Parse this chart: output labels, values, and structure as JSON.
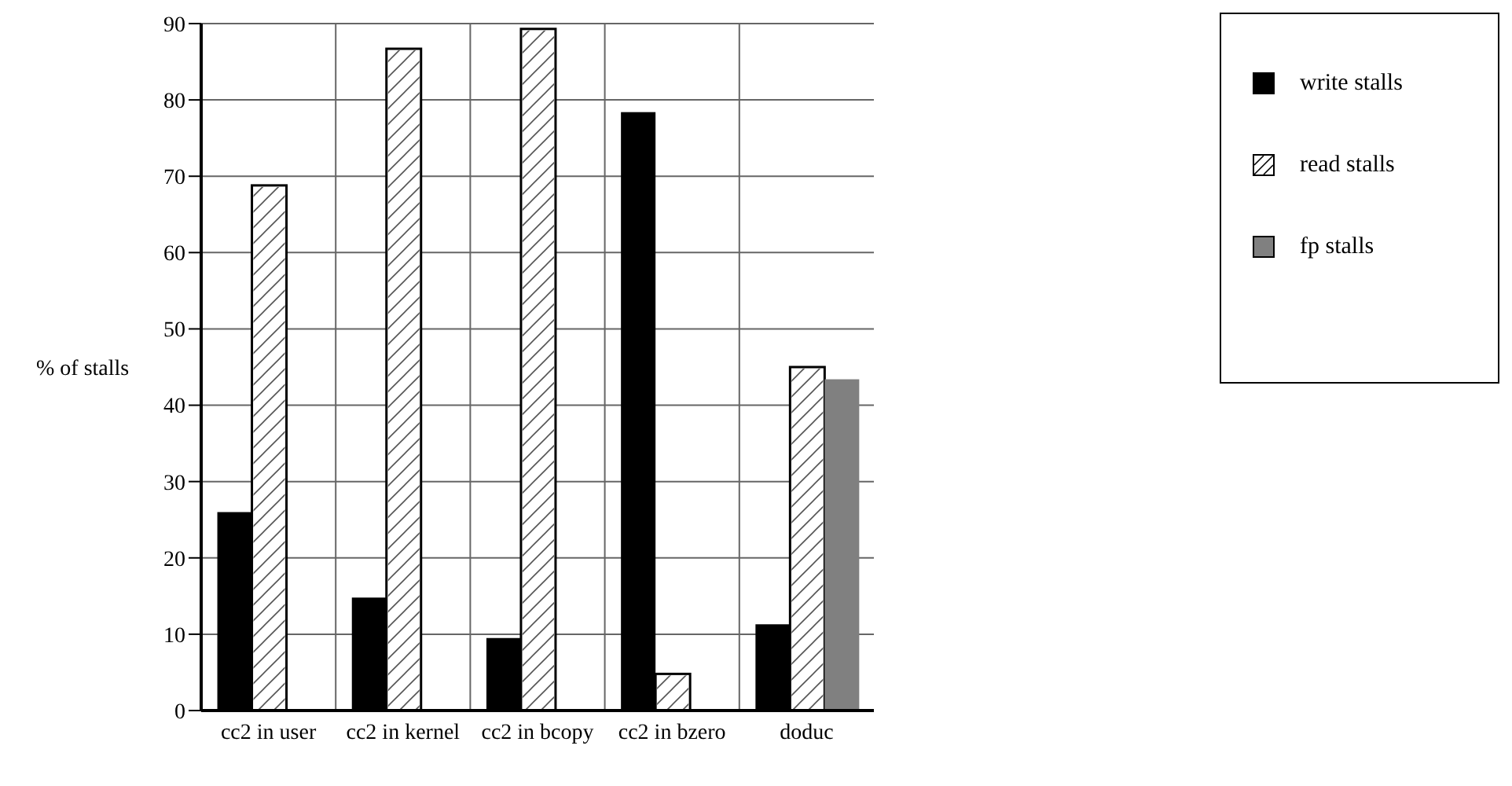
{
  "chart_data": {
    "type": "bar",
    "ylabel": "% of stalls",
    "categories": [
      "cc2 in user",
      "cc2 in kernel",
      "cc2 in bcopy",
      "cc2 in bzero",
      "doduc"
    ],
    "series": [
      {
        "name": "write stalls",
        "color": "#000000",
        "values": [
          26,
          14.8,
          9.5,
          78.4,
          11.3
        ]
      },
      {
        "name": "read stalls",
        "color": "#ffffff",
        "values": [
          68.8,
          86.7,
          89.3,
          4.8,
          45
        ]
      },
      {
        "name": "fp stalls",
        "color": "#808080",
        "values": [
          0,
          0,
          0,
          0,
          43.4
        ]
      }
    ],
    "ylim": [
      0,
      90
    ],
    "yticks": [
      0,
      10,
      20,
      30,
      40,
      50,
      60,
      70,
      80,
      90
    ],
    "grid": true,
    "legend": "top right"
  }
}
